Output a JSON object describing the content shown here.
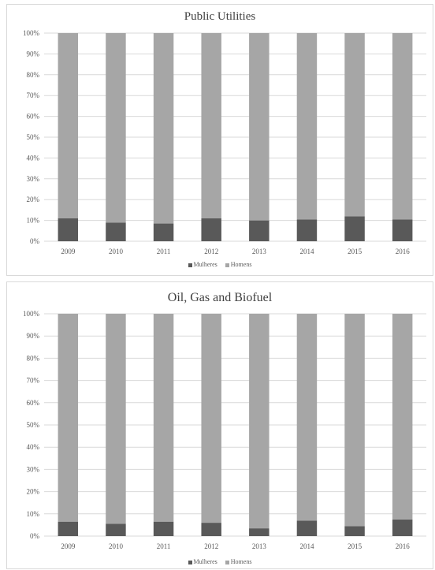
{
  "colors": {
    "women": "#595959",
    "men": "#a6a6a6",
    "grid": "#d9d9d9"
  },
  "chart_data": [
    {
      "type": "bar",
      "stacked": true,
      "title": "Public Utilities",
      "categories": [
        "2009",
        "2010",
        "2011",
        "2012",
        "2013",
        "2014",
        "2015",
        "2016"
      ],
      "series": [
        {
          "name": "Mulheres",
          "values": [
            11,
            9,
            8.5,
            11,
            10,
            10.5,
            12,
            10.5
          ]
        },
        {
          "name": "Homens",
          "values": [
            89,
            91,
            91.5,
            89,
            90,
            89.5,
            88,
            89.5
          ]
        }
      ],
      "ylim": [
        0,
        100
      ],
      "yticks": [
        "0%",
        "10%",
        "20%",
        "30%",
        "40%",
        "50%",
        "60%",
        "70%",
        "80%",
        "90%",
        "100%"
      ],
      "grid": true,
      "legend": "bottom"
    },
    {
      "type": "bar",
      "stacked": true,
      "title": "Oil, Gas and Biofuel",
      "categories": [
        "2009",
        "2010",
        "2011",
        "2012",
        "2013",
        "2014",
        "2015",
        "2016"
      ],
      "series": [
        {
          "name": "Mulheres",
          "values": [
            6.5,
            5.5,
            6.5,
            6,
            3.5,
            7,
            4.5,
            7.5
          ]
        },
        {
          "name": "Homens",
          "values": [
            93.5,
            94.5,
            93.5,
            94,
            96.5,
            93,
            95.5,
            92.5
          ]
        }
      ],
      "ylim": [
        0,
        100
      ],
      "yticks": [
        "0%",
        "10%",
        "20%",
        "30%",
        "40%",
        "50%",
        "60%",
        "70%",
        "80%",
        "90%",
        "100%"
      ],
      "grid": true,
      "legend": "bottom"
    }
  ]
}
